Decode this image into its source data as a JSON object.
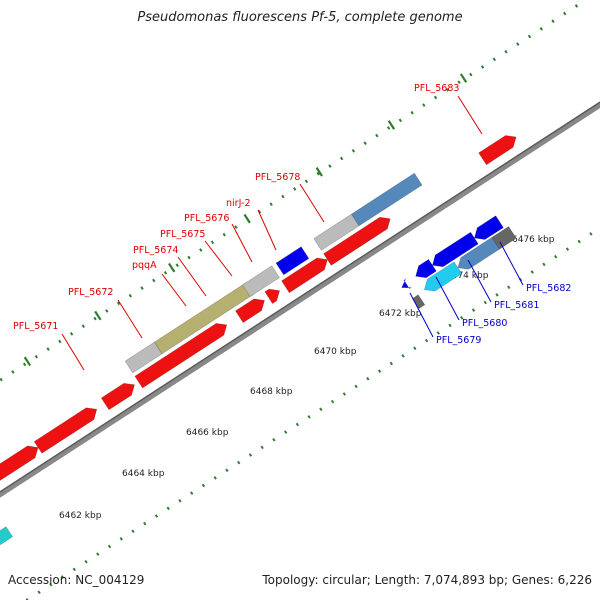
{
  "title": "Pseudomonas fluorescens Pf-5, complete genome",
  "footer": {
    "accession": "Accession: NC_004129",
    "summary": "Topology: circular; Length: 7,074,893 bp; Genes: 6,226"
  },
  "colors": {
    "forward_label": "#dd0000",
    "reverse_label": "#0000cc",
    "backbone": "#888888",
    "tick": "#2e7d2e"
  },
  "ticks": [
    {
      "label": "6462 kbp"
    },
    {
      "label": "6464 kbp"
    },
    {
      "label": "6466 kbp"
    },
    {
      "label": "6468 kbp"
    },
    {
      "label": "6470 kbp"
    },
    {
      "label": "6472 kbp"
    },
    {
      "label": "6474 kbp"
    },
    {
      "label": "6476 kbp"
    }
  ],
  "gene_labels": [
    {
      "name": "PFL_5671",
      "strand": "forward"
    },
    {
      "name": "PFL_5672",
      "strand": "forward"
    },
    {
      "name": "pqqA",
      "strand": "forward"
    },
    {
      "name": "PFL_5674",
      "strand": "forward"
    },
    {
      "name": "PFL_5675",
      "strand": "forward"
    },
    {
      "name": "PFL_5676",
      "strand": "forward"
    },
    {
      "name": "nirJ-2",
      "strand": "forward"
    },
    {
      "name": "PFL_5678",
      "strand": "forward"
    },
    {
      "name": "PFL_5683",
      "strand": "forward"
    },
    {
      "name": "PFL_5679",
      "strand": "reverse"
    },
    {
      "name": "PFL_5680",
      "strand": "reverse"
    },
    {
      "name": "PFL_5681",
      "strand": "reverse"
    },
    {
      "name": "PFL_5682",
      "strand": "reverse"
    }
  ]
}
